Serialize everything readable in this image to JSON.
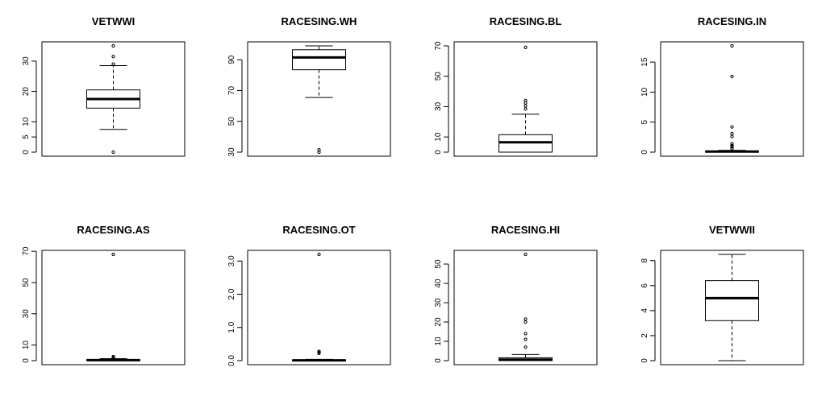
{
  "chart_data": [
    {
      "type": "box",
      "title": "VETWWI",
      "xlabel": "",
      "ylabel": "",
      "ylim": [
        0,
        35
      ],
      "yticks": [
        0,
        5,
        10,
        20,
        30
      ],
      "stats": {
        "whisker_low": 7.5,
        "q1": 14.5,
        "median": 17.5,
        "q3": 20.5,
        "whisker_high": 28.5
      },
      "outliers": [
        0,
        29,
        31.5,
        35
      ]
    },
    {
      "type": "box",
      "title": "RACESING.WH",
      "xlabel": "",
      "ylabel": "",
      "ylim": [
        30,
        99
      ],
      "yticks": [
        30,
        50,
        70,
        90
      ],
      "stats": {
        "whisker_low": 65.5,
        "q1": 83.5,
        "median": 91.5,
        "q3": 96.5,
        "whisker_high": 99
      },
      "outliers": [
        30,
        31.5
      ]
    },
    {
      "type": "box",
      "title": "RACESING.BL",
      "xlabel": "",
      "ylabel": "",
      "ylim": [
        0,
        70
      ],
      "yticks": [
        0,
        10,
        30,
        50,
        70
      ],
      "stats": {
        "whisker_low": 0,
        "q1": 0,
        "median": 6.5,
        "q3": 11.5,
        "whisker_high": 25
      },
      "outliers": [
        28.5,
        30.5,
        32.5,
        34,
        69
      ]
    },
    {
      "type": "box",
      "title": "RACESING.IN",
      "xlabel": "",
      "ylabel": "",
      "ylim": [
        0,
        17.7
      ],
      "yticks": [
        0,
        5,
        10,
        15
      ],
      "stats": {
        "whisker_low": 0,
        "q1": 0,
        "median": 0.1,
        "q3": 0.15,
        "whisker_high": 0.3
      },
      "outliers": [
        0.6,
        0.9,
        1.1,
        1.4,
        2.6,
        3.1,
        4.2,
        12.6,
        17.7
      ]
    },
    {
      "type": "box",
      "title": "RACESING.AS",
      "xlabel": "",
      "ylabel": "",
      "ylim": [
        0,
        68
      ],
      "yticks": [
        0,
        10,
        30,
        50,
        70
      ],
      "stats": {
        "whisker_low": 0,
        "q1": 0,
        "median": 0.3,
        "q3": 0.6,
        "whisker_high": 1.3
      },
      "outliers": [
        1.8,
        2.2,
        2.6,
        68
      ]
    },
    {
      "type": "box",
      "title": "RACESING.OT",
      "xlabel": "",
      "ylabel": "",
      "ylim": [
        0,
        3.2
      ],
      "yticks": [
        0.0,
        1.0,
        2.0,
        3.0
      ],
      "stats": {
        "whisker_low": 0,
        "q1": 0,
        "median": 0.01,
        "q3": 0.02,
        "whisker_high": 0.04
      },
      "outliers": [
        0.22,
        0.25,
        0.28,
        3.2
      ]
    },
    {
      "type": "box",
      "title": "RACESING.HI",
      "xlabel": "",
      "ylabel": "",
      "ylim": [
        0,
        55
      ],
      "yticks": [
        0,
        10,
        20,
        30,
        40,
        50
      ],
      "stats": {
        "whisker_low": 0,
        "q1": 0,
        "median": 0.5,
        "q3": 1.5,
        "whisker_high": 3.2
      },
      "outliers": [
        7,
        11,
        14,
        20,
        21.5,
        55
      ]
    },
    {
      "type": "box",
      "title": "VETWWII",
      "xlabel": "",
      "ylabel": "",
      "ylim": [
        0,
        8.5
      ],
      "yticks": [
        0,
        2,
        4,
        6,
        8
      ],
      "stats": {
        "whisker_low": 0,
        "q1": 3.2,
        "median": 5.0,
        "q3": 6.4,
        "whisker_high": 8.5
      },
      "outliers": []
    }
  ]
}
